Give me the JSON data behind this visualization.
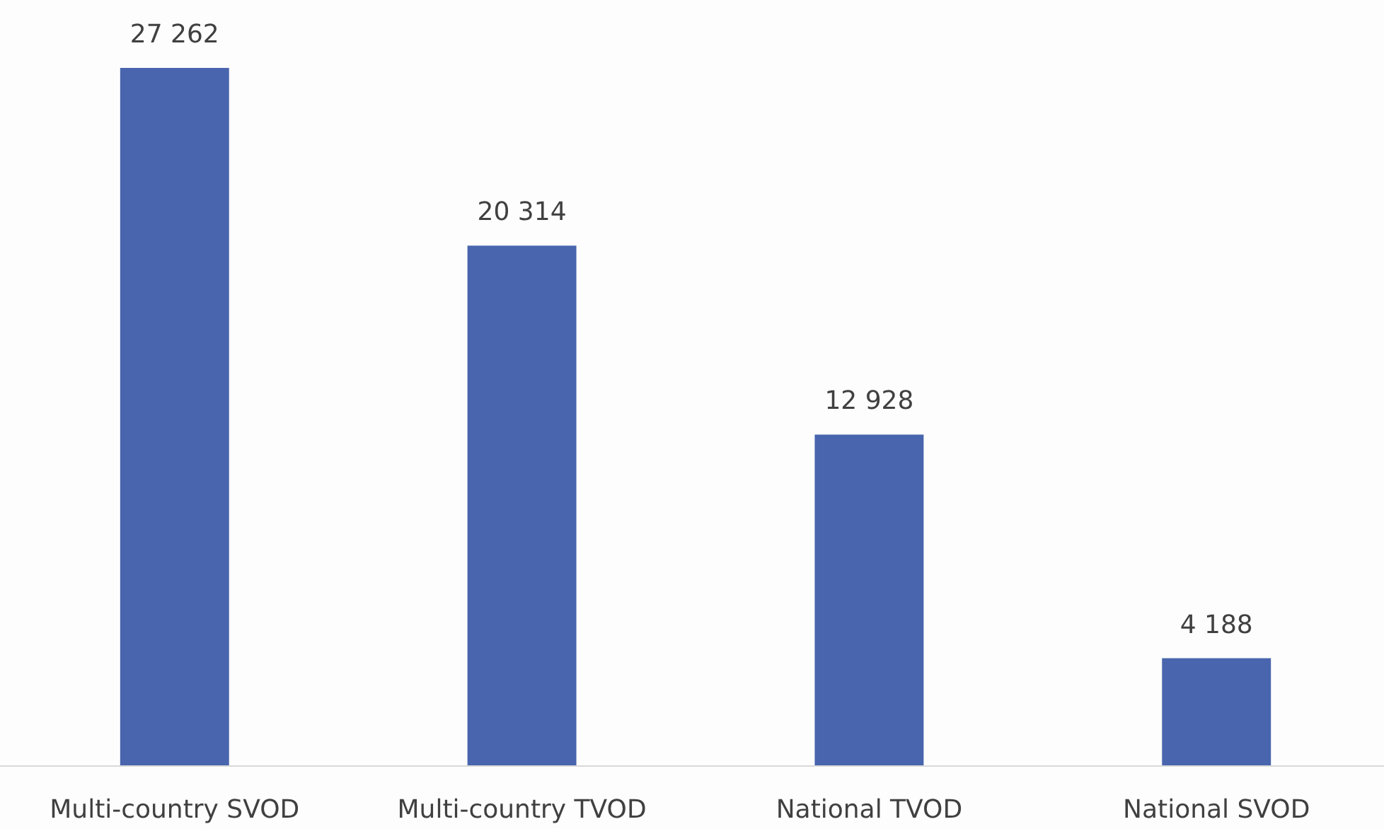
{
  "chart_data": {
    "type": "bar",
    "categories": [
      "Multi-country SVOD",
      "Multi-country TVOD",
      "National TVOD",
      "National SVOD"
    ],
    "values": [
      27262,
      20314,
      12928,
      4188
    ],
    "value_labels": [
      "27 262",
      "20 314",
      "12 928",
      "4 188"
    ],
    "color": "#4865ad"
  }
}
